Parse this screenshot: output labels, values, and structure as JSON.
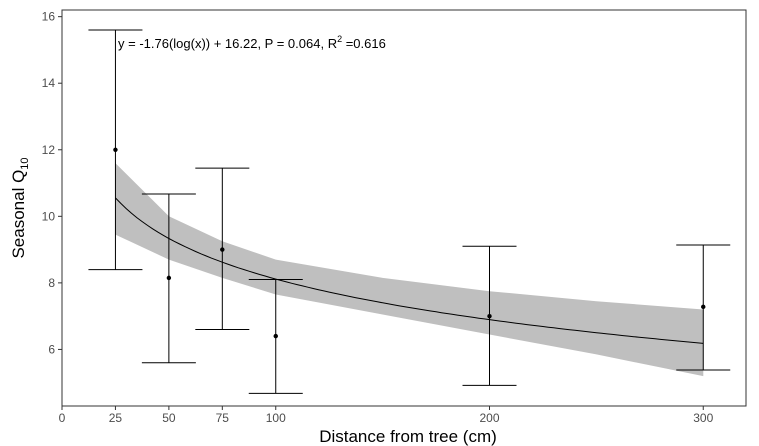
{
  "chart_data": {
    "type": "scatter",
    "xlabel": "Distance from tree (cm)",
    "ylabel_main": "Seasonal Q",
    "ylabel_sub": "10",
    "xlim": [
      0,
      320
    ],
    "ylim": [
      4.3,
      16.2
    ],
    "x_ticks": [
      0,
      25,
      50,
      75,
      100,
      200,
      300
    ],
    "y_ticks": [
      6,
      8,
      10,
      12,
      14,
      16
    ],
    "grid": false,
    "points": [
      {
        "x": 25,
        "y": 12.0,
        "lower": 8.4,
        "upper": 15.6
      },
      {
        "x": 50,
        "y": 8.15,
        "lower": 5.6,
        "upper": 10.67
      },
      {
        "x": 75,
        "y": 9.0,
        "lower": 6.6,
        "upper": 11.45
      },
      {
        "x": 100,
        "y": 6.4,
        "lower": 4.68,
        "upper": 8.1
      },
      {
        "x": 200,
        "y": 7.0,
        "lower": 4.92,
        "upper": 9.1
      },
      {
        "x": 300,
        "y": 7.28,
        "lower": 5.38,
        "upper": 9.14
      }
    ],
    "fit": {
      "label": "y = -1.76(log(x)) + 16.22, P = 0.064, R",
      "label_sup": "2",
      "label_tail": " =0.616",
      "intercept": 16.22,
      "slope": -1.76,
      "x_range": [
        25,
        300
      ],
      "ribbon": [
        {
          "x": 25,
          "lower": 9.45,
          "upper": 11.6
        },
        {
          "x": 50,
          "lower": 8.7,
          "upper": 10.0
        },
        {
          "x": 75,
          "lower": 8.15,
          "upper": 9.25
        },
        {
          "x": 100,
          "lower": 7.65,
          "upper": 8.7
        },
        {
          "x": 150,
          "lower": 7.05,
          "upper": 8.15
        },
        {
          "x": 200,
          "lower": 6.45,
          "upper": 7.75
        },
        {
          "x": 250,
          "lower": 5.85,
          "upper": 7.45
        },
        {
          "x": 300,
          "lower": 5.2,
          "upper": 7.2
        }
      ]
    },
    "colors": {
      "ribbon": "#bfbfbf",
      "line": "#000000",
      "points": "#000000",
      "axis": "#333333",
      "border": "#333333"
    }
  }
}
